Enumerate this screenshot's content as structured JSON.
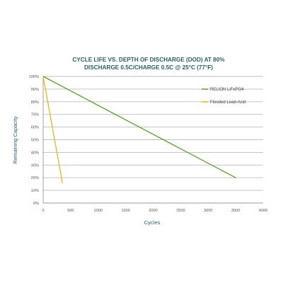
{
  "chart_data": {
    "type": "line",
    "title_lines": [
      "CYCLE LIFE VS. DEPTH OF DISCHARGE (DOD) AT 80%",
      "DISCHARGE 0.5C/CHARGE 0.5C @ 25°C (77°F)"
    ],
    "xlabel": "Cycles",
    "ylabel": "Remaining Capacity",
    "xlim": [
      0,
      4000
    ],
    "ylim": [
      0,
      100
    ],
    "x_ticks": [
      0,
      500,
      1000,
      1500,
      2000,
      2500,
      3000,
      3500,
      4000
    ],
    "x_tick_labels": [
      "0",
      "500",
      "1000",
      "1500",
      "2000",
      "2500",
      "3000",
      "3500",
      "4000"
    ],
    "y_ticks": [
      0,
      10,
      20,
      30,
      40,
      50,
      60,
      70,
      80,
      90,
      100
    ],
    "y_tick_labels": [
      "0%",
      "10%",
      "20%",
      "30%",
      "40%",
      "50%",
      "60%",
      "70%",
      "80%",
      "90%",
      "100%"
    ],
    "grid": "horizontal",
    "legend_position": "top-right",
    "series": [
      {
        "name": "RELION LiFePO4",
        "color": "#5a9e2f",
        "points": [
          [
            0,
            100
          ],
          [
            3500,
            20
          ]
        ]
      },
      {
        "name": "Flooded Lead-Acid",
        "color": "#e8b51c",
        "points": [
          [
            0,
            100
          ],
          [
            350,
            16
          ]
        ]
      }
    ]
  }
}
